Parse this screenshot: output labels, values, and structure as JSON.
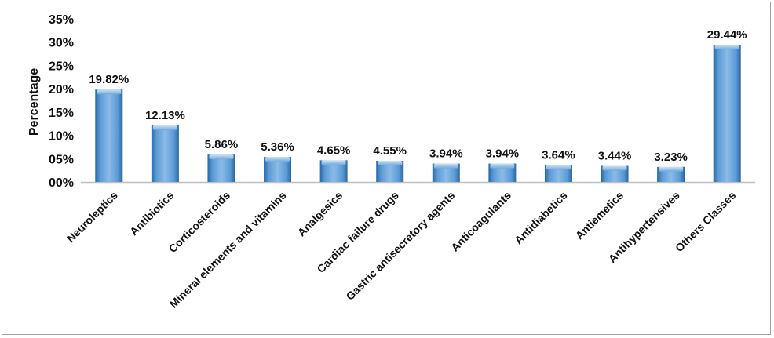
{
  "chart_data": {
    "type": "bar",
    "title": "",
    "xlabel": "",
    "ylabel": "Percentage",
    "ylim": [
      0,
      35
    ],
    "yticks": [
      "00%",
      "05%",
      "10%",
      "15%",
      "20%",
      "25%",
      "30%",
      "35%"
    ],
    "grid": false,
    "legend": "none",
    "categories": [
      "Neuroleptics",
      "Antibiotics",
      "Corticosteroids",
      "Mineral elements and vitamins",
      "Analgesics",
      "Cardiac failure drugs",
      "Gastric antisecretory agents",
      "Anticoagulants",
      "Antidiabetics",
      "Antiemetics",
      "Antihypertensives",
      "Others Classes"
    ],
    "values": [
      19.82,
      12.13,
      5.86,
      5.36,
      4.65,
      4.55,
      3.94,
      3.94,
      3.64,
      3.44,
      3.23,
      29.44
    ],
    "data_labels": [
      "19.82%",
      "12.13%",
      "5.86%",
      "5.36%",
      "4.65%",
      "4.55%",
      "3.94%",
      "3.94%",
      "3.64%",
      "3.44%",
      "3.23%",
      "29.44%"
    ],
    "colors": {
      "bar_main": "#5b9bd5",
      "bar_dark": "#2e6aa6",
      "bar_light": "#9cc5ec",
      "axis": "#bfbfbf"
    }
  }
}
